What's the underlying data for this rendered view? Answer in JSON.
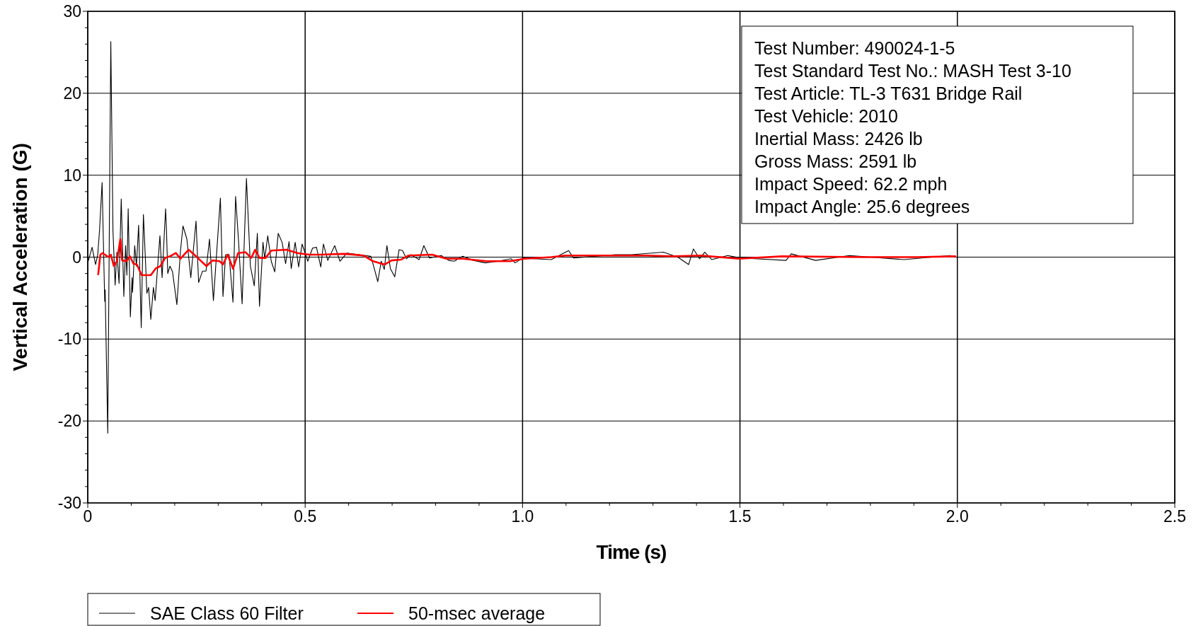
{
  "chart_data": {
    "type": "line",
    "xlabel": "Time (s)",
    "ylabel": "Vertical Acceleration (G)",
    "xlim": [
      0,
      2.5
    ],
    "xticks": [
      0,
      {
        "value": 0.1,
        "label": null
      },
      {
        "value": 0.2,
        "label": null
      },
      {
        "value": 0.3,
        "label": null
      },
      {
        "value": 0.4,
        "label": null
      },
      0.5,
      {
        "value": 0.6,
        "label": null
      },
      {
        "value": 0.7,
        "label": null
      },
      {
        "value": 0.8,
        "label": null
      },
      {
        "value": 0.9,
        "label": null
      },
      {
        "value": 1,
        "label": "1.0"
      },
      {
        "value": 1.1,
        "label": null
      },
      {
        "value": 1.2,
        "label": null
      },
      {
        "value": 1.3,
        "label": null
      },
      {
        "value": 1.4,
        "label": null
      },
      1.5,
      {
        "value": 1.6,
        "label": null
      },
      {
        "value": 1.7,
        "label": null
      },
      {
        "value": 1.8,
        "label": null
      },
      {
        "value": 1.9,
        "label": null
      },
      {
        "value": 2,
        "label": "2.0"
      },
      {
        "value": 2.1,
        "label": null
      },
      {
        "value": 2.2,
        "label": null
      },
      {
        "value": 2.3,
        "label": null
      },
      {
        "value": 2.4,
        "label": null
      },
      2.5
    ],
    "ylim": [
      -30,
      30
    ],
    "yticks": [
      -30,
      {
        "value": -28,
        "label": null
      },
      {
        "value": -26,
        "label": null
      },
      {
        "value": -24,
        "label": null
      },
      {
        "value": -22,
        "label": null
      },
      -20,
      {
        "value": -18,
        "label": null
      },
      {
        "value": -16,
        "label": null
      },
      {
        "value": -14,
        "label": null
      },
      {
        "value": -12,
        "label": null
      },
      -10,
      {
        "value": -8,
        "label": null
      },
      {
        "value": -6,
        "label": null
      },
      {
        "value": -4,
        "label": null
      },
      {
        "value": -2,
        "label": null
      },
      0,
      {
        "value": 2,
        "label": null
      },
      {
        "value": 4,
        "label": null
      },
      {
        "value": 6,
        "label": null
      },
      {
        "value": 8,
        "label": null
      },
      10,
      {
        "value": 12,
        "label": null
      },
      {
        "value": 14,
        "label": null
      },
      {
        "value": 16,
        "label": null
      },
      {
        "value": 18,
        "label": null
      },
      20,
      {
        "value": 22,
        "label": null
      },
      {
        "value": 24,
        "label": null
      },
      {
        "value": 26,
        "label": null
      },
      {
        "value": 28,
        "label": null
      },
      30
    ],
    "grid": true,
    "legend": "bottom",
    "marker": "none",
    "line_style": "solid",
    "series": [
      {
        "name": "SAE Class 60 Filter",
        "color": "#000000",
        "x": [
          0,
          0.001,
          0.01,
          0.018,
          0.023,
          0.027,
          0.033,
          0.036,
          0.039,
          0.04,
          0.046,
          0.053,
          0.058,
          0.063,
          0.067,
          0.072,
          0.077,
          0.083,
          0.087,
          0.09,
          0.093,
          0.098,
          0.102,
          0.103,
          0.108,
          0.112,
          0.117,
          0.123,
          0.128,
          0.13,
          0.136,
          0.14,
          0.145,
          0.151,
          0.155,
          0.166,
          0.171,
          0.179,
          0.181,
          0.184,
          0.189,
          0.195,
          0.205,
          0.213,
          0.219,
          0.228,
          0.237,
          0.249,
          0.255,
          0.264,
          0.272,
          0.28,
          0.289,
          0.305,
          0.311,
          0.317,
          0.325,
          0.334,
          0.34,
          0.347,
          0.355,
          0.365,
          0.374,
          0.383,
          0.39,
          0.395,
          0.403,
          0.407,
          0.414,
          0.422,
          0.43,
          0.438,
          0.447,
          0.455,
          0.463,
          0.468,
          0.477,
          0.485,
          0.493,
          0.506,
          0.517,
          0.526,
          0.536,
          0.542,
          0.552,
          0.568,
          0.58,
          0.596,
          0.623,
          0.651,
          0.659,
          0.667,
          0.675,
          0.682,
          0.688,
          0.696,
          0.706,
          0.716,
          0.724,
          0.733,
          0.743,
          0.762,
          0.773,
          0.786,
          0.813,
          0.83,
          0.843,
          0.862,
          0.887,
          0.914,
          0.944,
          0.974,
          0.983,
          1.001,
          1.025,
          1.066,
          1.106,
          1.117,
          1.214,
          1.251,
          1.324,
          1.357,
          1.382,
          1.393,
          1.407,
          1.419,
          1.435,
          1.472,
          1.5,
          1.534,
          1.606,
          1.618,
          1.674,
          1.752,
          1.877,
          1.983,
          1.995
        ],
        "values": [
          0,
          -0.5,
          1.2,
          -0.9,
          0.3,
          3.2,
          9.1,
          1.8,
          -5.4,
          -4,
          -21.5,
          26.3,
          3.2,
          -3.4,
          0.6,
          -3.2,
          7.1,
          -4.8,
          1.4,
          -2.2,
          5.9,
          -7.3,
          -2.5,
          -4.3,
          1.4,
          -1.1,
          3.9,
          -8.6,
          5.2,
          2.9,
          -4.4,
          -3.7,
          -7.6,
          -3.7,
          -5.3,
          2.6,
          -2.5,
          5.9,
          3.4,
          -2,
          -1.1,
          -1.8,
          -5.8,
          0.6,
          3.8,
          2.2,
          -2.5,
          4.4,
          -3.1,
          -1.7,
          -1.7,
          2.2,
          -5.3,
          7.2,
          -4.8,
          0.3,
          0.3,
          -5.5,
          7.4,
          1.8,
          -5.7,
          9.6,
          -1.1,
          -3.5,
          2.9,
          -6,
          1.8,
          -0.2,
          2.6,
          -0.5,
          -1.8,
          2.9,
          1.8,
          -0.8,
          1.9,
          -1.4,
          1.8,
          -1.2,
          1.6,
          -0.5,
          1.1,
          1.2,
          -1.2,
          1.6,
          -0.4,
          1.4,
          -0.5,
          0.5,
          0.3,
          0.1,
          -1.4,
          -3,
          -0.5,
          -1.5,
          1.4,
          -1.4,
          -2.4,
          0.9,
          0.8,
          -0.2,
          0.3,
          -0.3,
          1.4,
          -0.1,
          0.2,
          -0.4,
          -0.5,
          0.1,
          -0.4,
          -0.7,
          -0.5,
          -0.2,
          -0.7,
          -0.1,
          -0.2,
          -0.3,
          0.8,
          -0.1,
          0.3,
          0.3,
          0.6,
          0,
          -0.9,
          1,
          -0.2,
          0.6,
          -0.3,
          0.2,
          -0.1,
          -0.2,
          -0.4,
          0.4,
          -0.4,
          0.2,
          -0.3,
          0.2,
          0
        ]
      },
      {
        "name": "50-msec average",
        "color": "#ff0000",
        "x": [
          0.024,
          0.029,
          0.034,
          0.048,
          0.053,
          0.06,
          0.067,
          0.075,
          0.079,
          0.089,
          0.097,
          0.105,
          0.113,
          0.124,
          0.135,
          0.145,
          0.156,
          0.167,
          0.178,
          0.189,
          0.203,
          0.213,
          0.232,
          0.249,
          0.273,
          0.287,
          0.303,
          0.311,
          0.322,
          0.334,
          0.346,
          0.363,
          0.376,
          0.385,
          0.395,
          0.409,
          0.422,
          0.457,
          0.482,
          0.509,
          0.536,
          0.59,
          0.634,
          0.656,
          0.683,
          0.699,
          0.721,
          0.738,
          0.792,
          0.825,
          0.862,
          0.917,
          0.971,
          1.004,
          1.066,
          1.098,
          1.285,
          1.347,
          1.41,
          1.497,
          1.597,
          1.783,
          1.908,
          1.995
        ],
        "values": [
          -2.1,
          0.3,
          0.5,
          0,
          0.3,
          -1.1,
          -0.5,
          2.2,
          -0.4,
          -0.5,
          0.1,
          -0.8,
          -0.9,
          -2.2,
          -2.2,
          -2.2,
          -1.4,
          -1.1,
          -0.1,
          0.1,
          0.5,
          -0.2,
          0.9,
          0.1,
          -1.1,
          -0.4,
          -0.5,
          -0.9,
          0.3,
          -1.4,
          0.5,
          0.6,
          -0.1,
          0.9,
          -0.1,
          -0.1,
          0.8,
          0.9,
          0.5,
          0.3,
          0.3,
          0.4,
          0.2,
          -0.5,
          -0.9,
          -0.4,
          -0.3,
          0.2,
          0.3,
          -0.2,
          -0.2,
          -0.5,
          -0.5,
          -0.2,
          0,
          0.2,
          0.2,
          0.1,
          0.2,
          -0.2,
          0.1,
          0,
          0,
          0.1
        ]
      }
    ],
    "annotations": [
      "Test Number: 490024-1-5\nTest Standard Test No.: MASH Test 3-10\nTest Article: TL-3 T631 Bridge Rail\nTest Vehicle: 2010\nInertial Mass: 2426 lb\nGross Mass: 2591 lb\nImpact Speed: 62.2 mph\nImpact Angle: 25.6 degrees"
    ]
  }
}
